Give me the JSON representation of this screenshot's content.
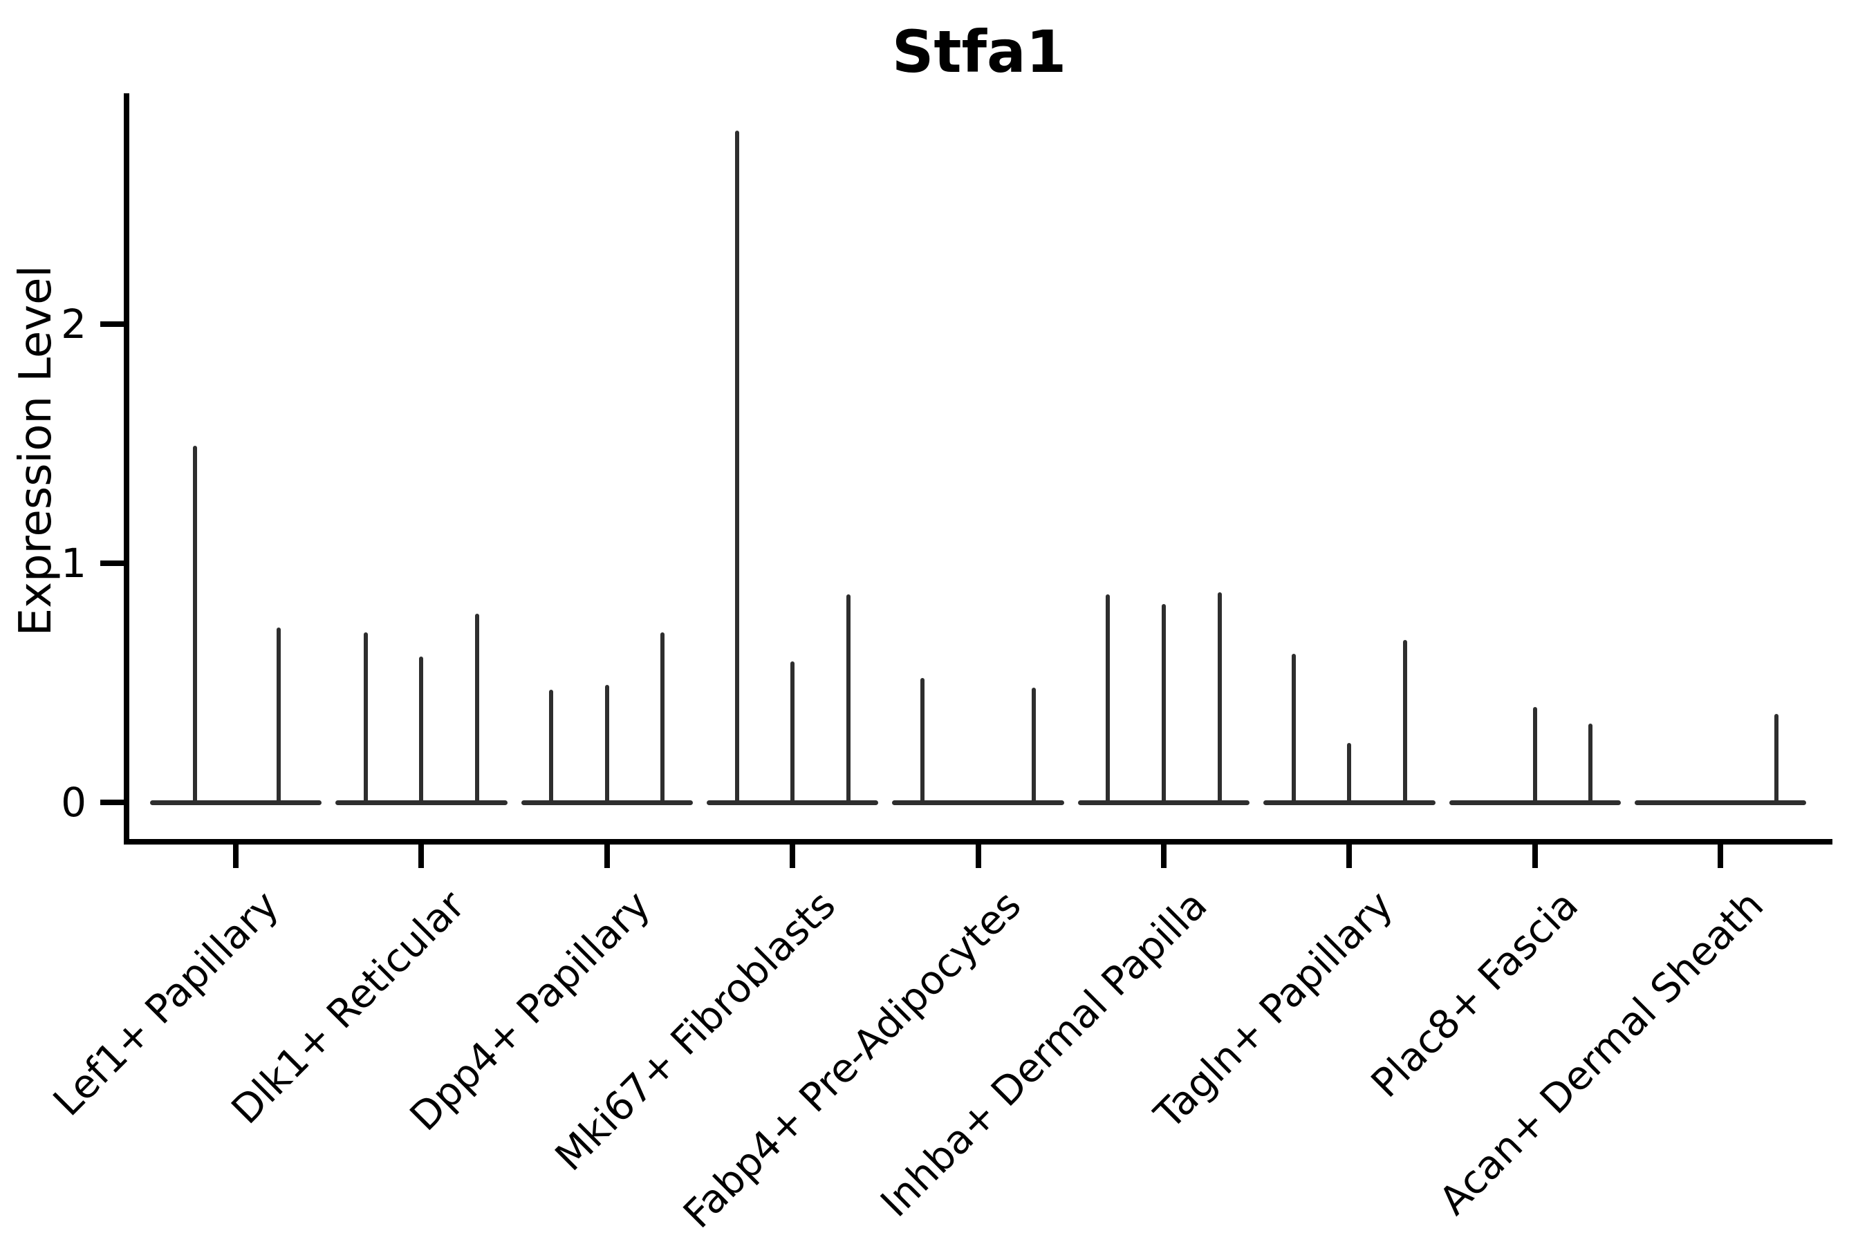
{
  "title": "Stfa1",
  "y_axis": {
    "label": "Expression Level",
    "tick_labels": [
      "0",
      "1",
      "2"
    ]
  },
  "colors": {
    "axis": "#000000",
    "text": "#000000",
    "violin_line": "#2e2e2e"
  },
  "chart_data": {
    "type": "violin",
    "title": "Stfa1",
    "xlabel": "",
    "ylabel": "Expression Level",
    "ylim": [
      0,
      2.97
    ],
    "yticks": [
      0,
      1,
      2
    ],
    "grid": false,
    "legend": "none",
    "x_tick_rotation_deg": 45,
    "baseline_halfwidth_frac": 0.4627,
    "categories": [
      "Lef1+ Papillary",
      "Dlk1+ Reticular",
      "Dpp4+ Papillary",
      "Mki67+ Fibroblasts",
      "Fabp4+ Pre-Adipocytes",
      "Inhba+ Dermal Papilla",
      "Tagln+ Papillary",
      "Plac8+ Fascia",
      "Acan+ Dermal Sheath"
    ],
    "series": [
      {
        "category": "Lef1+ Papillary",
        "spikes": [
          {
            "pos": -0.22,
            "value": 1.49
          },
          {
            "pos": 0.23,
            "value": 0.73
          }
        ]
      },
      {
        "category": "Dlk1+ Reticular",
        "spikes": [
          {
            "pos": -0.3,
            "value": 0.71
          },
          {
            "pos": 0.0,
            "value": 0.61
          },
          {
            "pos": 0.3,
            "value": 0.79
          }
        ]
      },
      {
        "category": "Dpp4+ Papillary",
        "spikes": [
          {
            "pos": -0.3,
            "value": 0.47
          },
          {
            "pos": 0.0,
            "value": 0.49
          },
          {
            "pos": 0.3,
            "value": 0.71
          }
        ]
      },
      {
        "category": "Mki67+ Fibroblasts",
        "spikes": [
          {
            "pos": -0.3,
            "value": 2.81
          },
          {
            "pos": 0.0,
            "value": 0.59
          },
          {
            "pos": 0.3,
            "value": 0.87
          }
        ]
      },
      {
        "category": "Fabp4+ Pre-Adipocytes",
        "spikes": [
          {
            "pos": -0.3,
            "value": 0.52
          },
          {
            "pos": 0.3,
            "value": 0.48
          }
        ]
      },
      {
        "category": "Inhba+ Dermal Papilla",
        "spikes": [
          {
            "pos": -0.3,
            "value": 0.87
          },
          {
            "pos": 0.0,
            "value": 0.83
          },
          {
            "pos": 0.3,
            "value": 0.88
          }
        ]
      },
      {
        "category": "Tagln+ Papillary",
        "spikes": [
          {
            "pos": -0.3,
            "value": 0.62
          },
          {
            "pos": 0.0,
            "value": 0.25
          },
          {
            "pos": 0.3,
            "value": 0.68
          }
        ]
      },
      {
        "category": "Plac8+ Fascia",
        "spikes": [
          {
            "pos": 0.0,
            "value": 0.4
          },
          {
            "pos": 0.3,
            "value": 0.33
          }
        ]
      },
      {
        "category": "Acan+ Dermal Sheath",
        "spikes": [
          {
            "pos": 0.3,
            "value": 0.37
          }
        ]
      }
    ]
  }
}
